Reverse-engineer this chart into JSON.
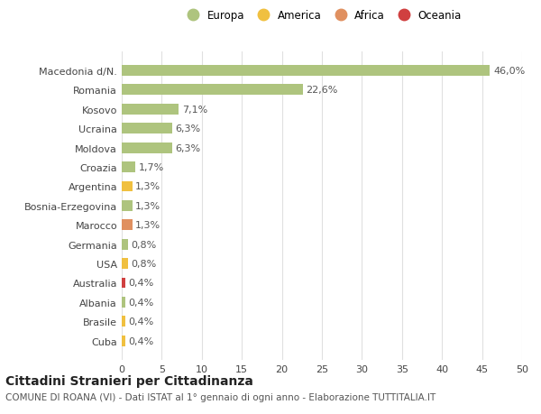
{
  "categories": [
    "Cuba",
    "Brasile",
    "Albania",
    "Australia",
    "USA",
    "Germania",
    "Marocco",
    "Bosnia-Erzegovina",
    "Argentina",
    "Croazia",
    "Moldova",
    "Ucraina",
    "Kosovo",
    "Romania",
    "Macedonia d/N."
  ],
  "values": [
    0.4,
    0.4,
    0.4,
    0.4,
    0.8,
    0.8,
    1.3,
    1.3,
    1.3,
    1.7,
    6.3,
    6.3,
    7.1,
    22.6,
    46.0
  ],
  "labels": [
    "0,4%",
    "0,4%",
    "0,4%",
    "0,4%",
    "0,8%",
    "0,8%",
    "1,3%",
    "1,3%",
    "1,3%",
    "1,7%",
    "6,3%",
    "6,3%",
    "7,1%",
    "22,6%",
    "46,0%"
  ],
  "colors": [
    "#f0c040",
    "#f0c040",
    "#aec47e",
    "#d04040",
    "#f0c040",
    "#aec47e",
    "#e09060",
    "#aec47e",
    "#f0c040",
    "#aec47e",
    "#aec47e",
    "#aec47e",
    "#aec47e",
    "#aec47e",
    "#aec47e"
  ],
  "legend": {
    "Europa": "#aec47e",
    "America": "#f0c040",
    "Africa": "#e09060",
    "Oceania": "#d04040"
  },
  "title": "Cittadini Stranieri per Cittadinanza",
  "subtitle": "COMUNE DI ROANA (VI) - Dati ISTAT al 1° gennaio di ogni anno - Elaborazione TUTTITALIA.IT",
  "xlim": [
    0,
    50
  ],
  "xticks": [
    0,
    5,
    10,
    15,
    20,
    25,
    30,
    35,
    40,
    45,
    50
  ],
  "background_color": "#ffffff",
  "grid_color": "#e0e0e0",
  "bar_height": 0.55,
  "title_fontsize": 10,
  "subtitle_fontsize": 7.5,
  "tick_fontsize": 8,
  "label_fontsize": 8
}
